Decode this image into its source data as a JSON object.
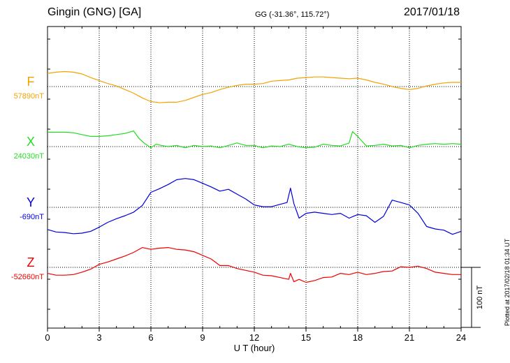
{
  "header": {
    "title": "Gingin (GNG)  [GA]",
    "coords": "GG (-31.36°, 115.72°)",
    "date": "2017/01/18"
  },
  "footer": {
    "plotted": "Plotted at 2017/02/18 01:34 UT"
  },
  "scale_label": "100 nT",
  "chart_data": {
    "type": "line",
    "xlabel": "U T (hour)",
    "xlim": [
      0,
      24
    ],
    "x_ticks": [
      0,
      3,
      6,
      9,
      12,
      15,
      18,
      21,
      24
    ],
    "scale_bar_nT": 100,
    "grid": true,
    "series": [
      {
        "name": "F",
        "baseline_label": "57890nT",
        "color": "#f2a300",
        "points": [
          [
            0,
            -22
          ],
          [
            0.5,
            -24
          ],
          [
            1,
            -25
          ],
          [
            1.5,
            -24
          ],
          [
            2,
            -21
          ],
          [
            2.5,
            -15
          ],
          [
            3,
            -10
          ],
          [
            3.5,
            -5
          ],
          [
            4,
            -1
          ],
          [
            4.5,
            5
          ],
          [
            5,
            11
          ],
          [
            5.5,
            19
          ],
          [
            6,
            25
          ],
          [
            6.5,
            27
          ],
          [
            7,
            26
          ],
          [
            7.5,
            26
          ],
          [
            8,
            23
          ],
          [
            8.5,
            18
          ],
          [
            9,
            13
          ],
          [
            9.5,
            10
          ],
          [
            10,
            5
          ],
          [
            10.5,
            1
          ],
          [
            11,
            -2
          ],
          [
            11.5,
            -4
          ],
          [
            12,
            -4
          ],
          [
            12.5,
            -5
          ],
          [
            13,
            -9
          ],
          [
            13.5,
            -10
          ],
          [
            14,
            -11
          ],
          [
            14.5,
            -14
          ],
          [
            15,
            -15
          ],
          [
            15.5,
            -16
          ],
          [
            16,
            -16
          ],
          [
            16.5,
            -15
          ],
          [
            17,
            -14
          ],
          [
            17.5,
            -13
          ],
          [
            18,
            -14
          ],
          [
            18.5,
            -11
          ],
          [
            19,
            -7
          ],
          [
            19.5,
            -4
          ],
          [
            20,
            0
          ],
          [
            20.5,
            3
          ],
          [
            21,
            5
          ],
          [
            21.5,
            3
          ],
          [
            22,
            -1
          ],
          [
            22.5,
            -4
          ],
          [
            23,
            -6
          ],
          [
            23.5,
            -7
          ],
          [
            24,
            -7
          ]
        ]
      },
      {
        "name": "X",
        "baseline_label": "24030nT",
        "color": "#22dd22",
        "points": [
          [
            0,
            -24
          ],
          [
            0.5,
            -24
          ],
          [
            1,
            -24
          ],
          [
            1.5,
            -23
          ],
          [
            2,
            -20
          ],
          [
            2.5,
            -17
          ],
          [
            3,
            -17
          ],
          [
            3.5,
            -18
          ],
          [
            4,
            -20
          ],
          [
            4.5,
            -22
          ],
          [
            5,
            -26
          ],
          [
            5.3,
            -14
          ],
          [
            5.6,
            -6
          ],
          [
            6,
            2
          ],
          [
            6.3,
            -4
          ],
          [
            6.6,
            -2
          ],
          [
            7,
            0
          ],
          [
            7.5,
            -2
          ],
          [
            8,
            2
          ],
          [
            8.5,
            -2
          ],
          [
            9,
            0
          ],
          [
            9.5,
            -1
          ],
          [
            10,
            2
          ],
          [
            10.5,
            -2
          ],
          [
            11,
            -6
          ],
          [
            11.5,
            -2
          ],
          [
            12,
            -2
          ],
          [
            12.5,
            2
          ],
          [
            13,
            -1
          ],
          [
            13.5,
            0
          ],
          [
            14,
            -4
          ],
          [
            14.5,
            0
          ],
          [
            15,
            2
          ],
          [
            15.5,
            1
          ],
          [
            16,
            -4
          ],
          [
            16.5,
            -2
          ],
          [
            17,
            -1
          ],
          [
            17.5,
            -6
          ],
          [
            17.7,
            -25
          ],
          [
            18,
            -17
          ],
          [
            18.5,
            -1
          ],
          [
            19,
            -2
          ],
          [
            19.5,
            -4
          ],
          [
            20,
            -1
          ],
          [
            20.5,
            -2
          ],
          [
            21,
            2
          ],
          [
            21.5,
            -2
          ],
          [
            22,
            -4
          ],
          [
            22.5,
            -5
          ],
          [
            23,
            -4
          ],
          [
            23.5,
            -5
          ],
          [
            24,
            -4
          ]
        ]
      },
      {
        "name": "Y",
        "baseline_label": "-690nT",
        "color": "#0000dd",
        "points": [
          [
            0,
            37
          ],
          [
            0.5,
            41
          ],
          [
            1,
            42
          ],
          [
            1.5,
            44
          ],
          [
            2,
            43
          ],
          [
            2.5,
            40
          ],
          [
            3,
            33
          ],
          [
            3.5,
            25
          ],
          [
            4,
            19
          ],
          [
            4.5,
            14
          ],
          [
            5,
            8
          ],
          [
            5.5,
            -3
          ],
          [
            6,
            -25
          ],
          [
            6.5,
            -31
          ],
          [
            7,
            -38
          ],
          [
            7.5,
            -46
          ],
          [
            8,
            -48
          ],
          [
            8.5,
            -46
          ],
          [
            9,
            -40
          ],
          [
            9.5,
            -34
          ],
          [
            10,
            -27
          ],
          [
            10.5,
            -30
          ],
          [
            11,
            -22
          ],
          [
            11.5,
            -14
          ],
          [
            12,
            -4
          ],
          [
            12.5,
            -1
          ],
          [
            13,
            -1
          ],
          [
            13.5,
            -5
          ],
          [
            13.9,
            -8
          ],
          [
            14.1,
            -32
          ],
          [
            14.3,
            -6
          ],
          [
            14.6,
            18
          ],
          [
            15,
            10
          ],
          [
            15.5,
            8
          ],
          [
            16,
            10
          ],
          [
            16.5,
            12
          ],
          [
            17,
            10
          ],
          [
            17.5,
            18
          ],
          [
            18,
            12
          ],
          [
            18.5,
            14
          ],
          [
            19,
            25
          ],
          [
            19.5,
            15
          ],
          [
            20,
            -12
          ],
          [
            20.5,
            -8
          ],
          [
            21,
            -4
          ],
          [
            21.5,
            10
          ],
          [
            22,
            32
          ],
          [
            22.5,
            36
          ],
          [
            23,
            38
          ],
          [
            23.5,
            45
          ],
          [
            24,
            40
          ]
        ]
      },
      {
        "name": "Z",
        "baseline_label": "-52660nT",
        "color": "#ee0000",
        "points": [
          [
            0,
            10
          ],
          [
            0.5,
            13
          ],
          [
            1,
            13
          ],
          [
            1.5,
            12
          ],
          [
            2,
            8
          ],
          [
            2.5,
            3
          ],
          [
            3,
            -5
          ],
          [
            3.5,
            -9
          ],
          [
            4,
            -14
          ],
          [
            4.5,
            -19
          ],
          [
            5,
            -25
          ],
          [
            5.5,
            -33
          ],
          [
            6,
            -30
          ],
          [
            6.5,
            -32
          ],
          [
            7,
            -33
          ],
          [
            7.5,
            -30
          ],
          [
            8,
            -29
          ],
          [
            8.5,
            -26
          ],
          [
            9,
            -20
          ],
          [
            9.5,
            -14
          ],
          [
            10,
            -3
          ],
          [
            10.5,
            -3
          ],
          [
            11,
            2
          ],
          [
            11.5,
            5
          ],
          [
            12,
            8
          ],
          [
            12.5,
            13
          ],
          [
            13,
            14
          ],
          [
            13.5,
            17
          ],
          [
            14,
            20
          ],
          [
            14.1,
            10
          ],
          [
            14.3,
            24
          ],
          [
            14.6,
            20
          ],
          [
            15,
            25
          ],
          [
            15.5,
            22
          ],
          [
            16,
            17
          ],
          [
            16.5,
            16
          ],
          [
            17,
            10
          ],
          [
            17.5,
            12
          ],
          [
            18,
            8
          ],
          [
            18.5,
            12
          ],
          [
            19,
            10
          ],
          [
            19.5,
            7
          ],
          [
            20,
            6
          ],
          [
            20.5,
            -1
          ],
          [
            21,
            0
          ],
          [
            21.5,
            -2
          ],
          [
            22,
            2
          ],
          [
            22.5,
            8
          ],
          [
            23,
            10
          ],
          [
            23.5,
            12
          ],
          [
            24,
            12
          ]
        ]
      }
    ]
  }
}
